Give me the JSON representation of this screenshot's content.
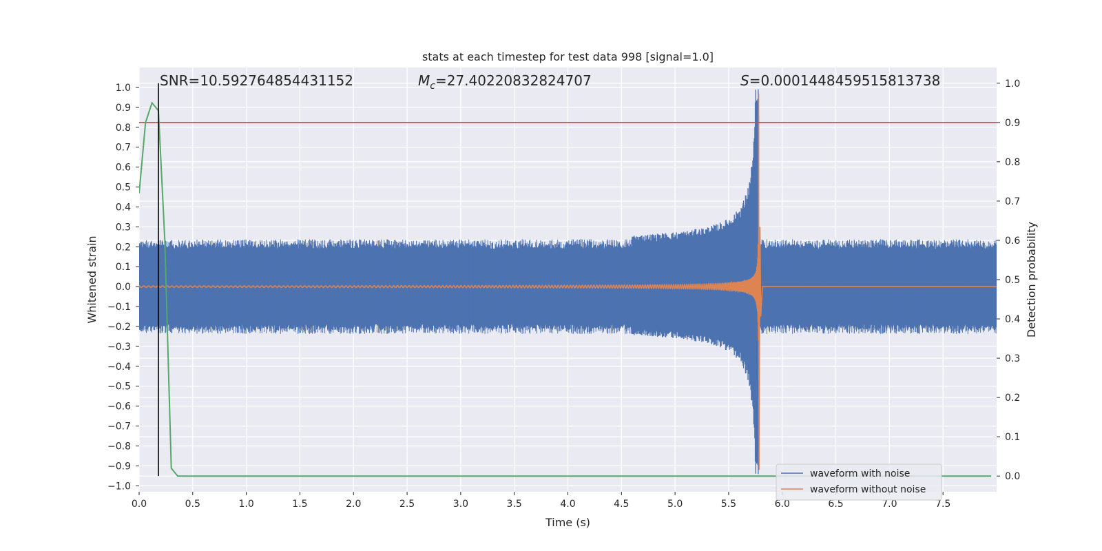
{
  "chart_data": {
    "type": "line",
    "title": "stats at each timestep for test data 998 [signal=1.0]",
    "xlabel": "Time (s)",
    "ylabel": "Whitened strain",
    "ylabel_right": "Detection probability",
    "xlim": [
      0.0,
      8.0
    ],
    "ylim": [
      -1.03,
      1.1
    ],
    "ylim_right": [
      -0.04,
      1.04
    ],
    "x_ticks": [
      "0.0",
      "0.5",
      "1.0",
      "1.5",
      "2.0",
      "2.5",
      "3.0",
      "3.5",
      "4.0",
      "4.5",
      "5.0",
      "5.5",
      "6.0",
      "6.5",
      "7.0",
      "7.5"
    ],
    "x_tick_values": [
      0.0,
      0.5,
      1.0,
      1.5,
      2.0,
      2.5,
      3.0,
      3.5,
      4.0,
      4.5,
      5.0,
      5.5,
      6.0,
      6.5,
      7.0,
      7.5
    ],
    "y_ticks": [
      "1.0",
      "0.9",
      "0.8",
      "0.7",
      "0.6",
      "0.5",
      "0.4",
      "0.3",
      "0.2",
      "0.1",
      "0.0",
      "−0.1",
      "−0.2",
      "−0.3",
      "−0.4",
      "−0.5",
      "−0.6",
      "−0.7",
      "−0.8",
      "−0.9",
      "−1.0"
    ],
    "y_tick_values": [
      1.0,
      0.9,
      0.8,
      0.7,
      0.6,
      0.5,
      0.4,
      0.3,
      0.2,
      0.1,
      0.0,
      -0.1,
      -0.2,
      -0.3,
      -0.4,
      -0.5,
      -0.6,
      -0.7,
      -0.8,
      -0.9,
      -1.0
    ],
    "y_ticks_right": [
      "1.0",
      "0.9",
      "0.8",
      "0.7",
      "0.6",
      "0.5",
      "0.4",
      "0.3",
      "0.2",
      "0.1",
      "0.0"
    ],
    "y_tick_values_right": [
      1.0,
      0.9,
      0.8,
      0.7,
      0.6,
      0.5,
      0.4,
      0.3,
      0.2,
      0.1,
      0.0
    ],
    "grid": true,
    "legend_position": "lower-right",
    "colors": {
      "background": "#eaeaf2",
      "grid": "#ffffff",
      "noise": "#4c72b0",
      "clean": "#dd8452",
      "probability": "#55a868",
      "threshold": "#c44e52",
      "marker": "#000000"
    },
    "annotations": {
      "snr_prefix": "SNR=",
      "snr_value": "10.592764854431152",
      "mc_symbol": "M",
      "mc_subscript": "c",
      "mc_value": "=27.40220832824707",
      "s_symbol": "S",
      "s_value": "=0.0001448459515813738"
    },
    "series": [
      {
        "name": "waveform with noise",
        "axis": "left",
        "color": "#4c72b0",
        "band_core": [
          -0.15,
          0.04
        ],
        "noise_amplitude": 0.22,
        "merger_time": 5.78,
        "merger_peak": 1.0
      },
      {
        "name": "waveform without noise",
        "axis": "left",
        "color": "#dd8452",
        "start_time": 0.0,
        "merger_time": 5.78,
        "merger_peak": 0.97,
        "trough": -0.92
      },
      {
        "name": "",
        "axis": "right",
        "color": "#55a868",
        "x": [
          0.0,
          0.06,
          0.12,
          0.18,
          0.24,
          0.3,
          0.36,
          0.42,
          1.0,
          2.0,
          3.0,
          4.0,
          5.0,
          6.0,
          7.0,
          7.95
        ],
        "y": [
          0.72,
          0.9,
          0.95,
          0.93,
          0.6,
          0.02,
          0.0,
          0.0,
          0.0,
          0.0,
          0.0,
          0.0,
          0.0,
          0.0,
          0.0,
          0.0
        ]
      }
    ],
    "threshold_right": 0.9,
    "marker_time": 0.18,
    "marker_range_right": [
      0.0,
      1.0
    ],
    "legend": [
      {
        "label": "waveform with noise",
        "color": "#4c72b0"
      },
      {
        "label": "waveform without noise",
        "color": "#dd8452"
      }
    ]
  }
}
